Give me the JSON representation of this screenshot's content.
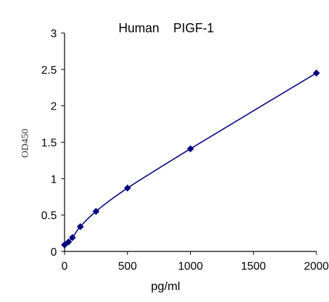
{
  "chart_data": {
    "type": "scatter",
    "title": "Human    PIGF-1",
    "xlabel": "pg/ml",
    "ylabel": "OD450",
    "xlim": [
      0,
      2000
    ],
    "ylim": [
      0,
      3
    ],
    "xticks": [
      0,
      500,
      1000,
      1500,
      2000
    ],
    "yticks": [
      0,
      0.5,
      1,
      1.5,
      2,
      2.5,
      3
    ],
    "xtick_labels": [
      "0",
      "500",
      "1000",
      "1500",
      "2000"
    ],
    "ytick_labels": [
      "0",
      "0.5",
      "1",
      "1.5",
      "2",
      "2.5",
      "3"
    ],
    "grid": false,
    "fit_line": true,
    "series": [
      {
        "marker": "diamond",
        "x": [
          0,
          31.25,
          62.5,
          125,
          250,
          500,
          1000,
          2000
        ],
        "y": [
          0.09,
          0.13,
          0.19,
          0.34,
          0.55,
          0.87,
          1.41,
          2.45
        ]
      }
    ],
    "colors": {
      "series": "#000080",
      "axis": "#000000"
    }
  }
}
